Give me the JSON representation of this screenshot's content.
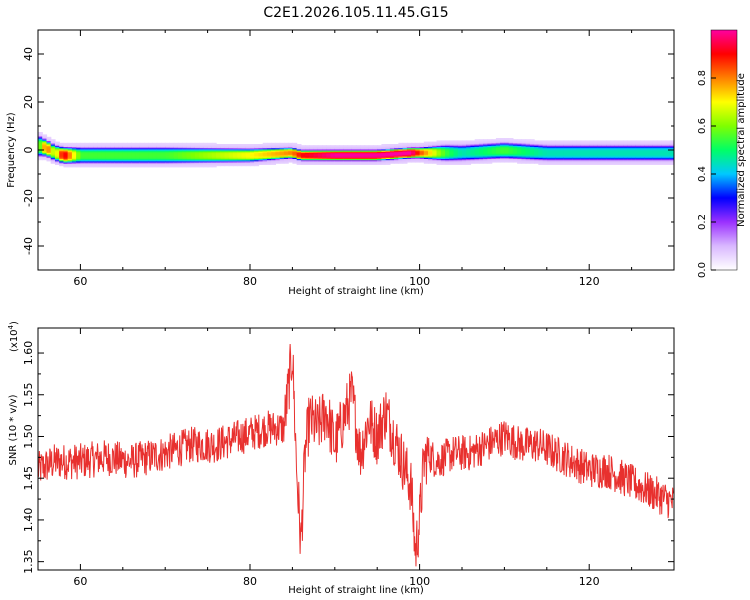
{
  "title": "C2E1.2026.105.11.45.G15",
  "chart_data": [
    {
      "type": "heatmap",
      "xlabel": "Height of straight line (km)",
      "ylabel": "Frequency (Hz)",
      "xlim": [
        55,
        130
      ],
      "ylim": [
        -50,
        50
      ],
      "xticks": [
        60,
        80,
        100,
        120
      ],
      "yticks": [
        -40,
        -20,
        0,
        20,
        40
      ],
      "ridge": {
        "x": [
          55,
          56,
          57,
          58,
          60,
          70,
          80,
          85,
          86,
          90,
          95,
          99,
          100,
          103,
          105,
          110,
          115,
          120,
          125,
          130
        ],
        "freq_center": [
          2,
          1,
          -1,
          -2,
          -2,
          -2,
          -2,
          -1,
          -2,
          -2,
          -2,
          -1,
          -1,
          -1,
          -1,
          0,
          -1,
          -1,
          -1,
          -1
        ],
        "halfwidth": [
          4,
          3,
          3,
          3,
          3,
          3,
          2.5,
          2,
          2,
          2,
          2,
          2,
          2,
          3,
          3,
          3,
          3,
          3,
          3,
          3
        ],
        "amplitude": [
          0.5,
          0.85,
          0.6,
          0.95,
          0.55,
          0.55,
          0.7,
          0.8,
          0.9,
          1.0,
          1.0,
          1.0,
          0.85,
          0.55,
          0.45,
          0.55,
          0.45,
          0.45,
          0.45,
          0.45
        ]
      },
      "colorbar": {
        "label": "Normalized spectral amplitude",
        "range": [
          0,
          1
        ],
        "ticks": [
          "0.0",
          "0.2",
          "0.4",
          "0.6",
          "0.8"
        ],
        "tick_values": [
          0.0,
          0.2,
          0.4,
          0.6,
          0.8
        ],
        "colors": [
          "#ffffff",
          "#d9b8ff",
          "#9b30ff",
          "#0000ff",
          "#00c8ff",
          "#00ff66",
          "#80ff00",
          "#ffff00",
          "#ff8000",
          "#ff0000",
          "#ff00a0"
        ]
      }
    },
    {
      "type": "line",
      "xlabel": "Height of straight line (km)",
      "ylabel": "SNR (10 * v/v)",
      "scale_note": "(x10",
      "scale_exp": "4",
      "scale_close": ")",
      "xlim": [
        55,
        130
      ],
      "ylim": [
        1.34,
        1.63
      ],
      "xticks": [
        60,
        80,
        100,
        120
      ],
      "yticks": [
        "1.35",
        "1.40",
        "1.45",
        "1.50",
        "1.55",
        "1.60"
      ],
      "ytick_values": [
        1.35,
        1.4,
        1.45,
        1.5,
        1.55,
        1.6
      ],
      "color": "#e8302e",
      "series": [
        {
          "x": [
            55,
            57,
            60,
            63,
            66,
            70,
            73,
            76,
            79,
            82,
            84,
            85,
            85.5,
            86,
            86.5,
            87,
            88,
            89,
            90,
            91,
            92,
            93,
            94,
            95,
            96,
            97,
            98,
            99,
            99.5,
            100,
            100.5,
            101,
            102,
            104,
            106,
            108,
            110,
            112,
            114,
            116,
            118,
            120,
            122,
            124,
            126,
            128,
            130
          ],
          "values": [
            1.46,
            1.47,
            1.47,
            1.475,
            1.47,
            1.48,
            1.49,
            1.49,
            1.5,
            1.51,
            1.51,
            1.6,
            1.46,
            1.37,
            1.48,
            1.52,
            1.51,
            1.53,
            1.49,
            1.52,
            1.55,
            1.48,
            1.52,
            1.5,
            1.53,
            1.5,
            1.47,
            1.44,
            1.36,
            1.4,
            1.47,
            1.48,
            1.47,
            1.48,
            1.48,
            1.49,
            1.5,
            1.49,
            1.49,
            1.48,
            1.47,
            1.46,
            1.46,
            1.45,
            1.44,
            1.43,
            1.42
          ]
        }
      ]
    }
  ]
}
